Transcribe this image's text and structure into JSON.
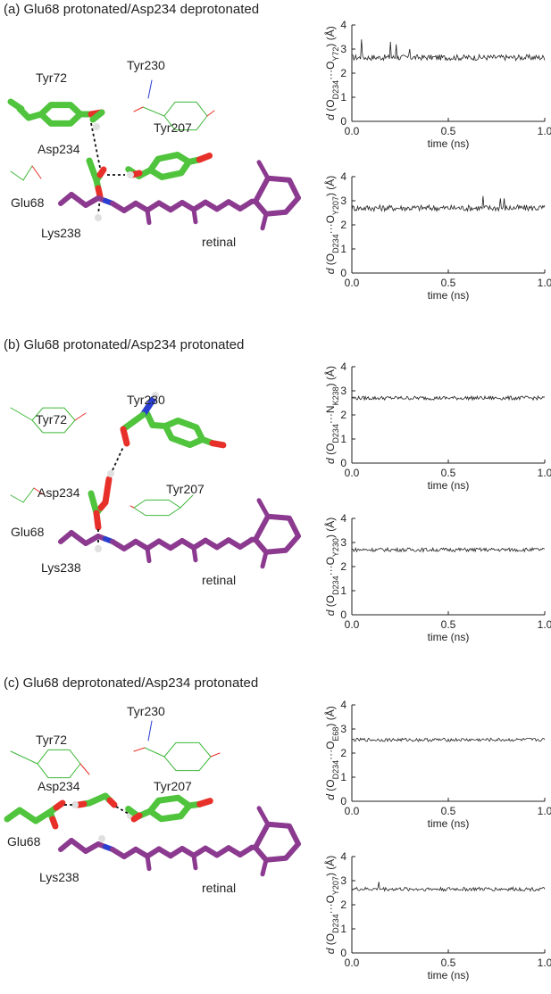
{
  "panels": [
    {
      "title": "(a) Glu68 protonated/Asp234 deprotonated",
      "labels": {
        "tyr72": "Tyr72",
        "tyr230": "Tyr230",
        "asp234": "Asp234",
        "tyr207": "Tyr207",
        "glu68": "Glu68",
        "lys238": "Lys238",
        "retinal": "retinal"
      },
      "variant": "a"
    },
    {
      "title": "(b) Glu68 protonated/Asp234 protonated",
      "labels": {
        "tyr72": "Tyr72",
        "tyr230": "Tyr230",
        "asp234": "Asp234",
        "tyr207": "Tyr207",
        "glu68": "Glu68",
        "lys238": "Lys238",
        "retinal": "retinal"
      },
      "variant": "b"
    },
    {
      "title": "(c) Glu68 deprotonated/Asp234 protonated",
      "labels": {
        "tyr72": "Tyr72",
        "tyr230": "Tyr230",
        "asp234": "Asp234",
        "tyr207": "Tyr207",
        "glu68": "Glu68",
        "lys238": "Lys238",
        "retinal": "retinal"
      },
      "variant": "c"
    }
  ],
  "colors": {
    "carbon": "#4fc43c",
    "thin": "#3fb83a",
    "oxygen": "#e8302a",
    "nitrogen": "#2a3fd0",
    "hydrogen": "#e0e0e0",
    "retinal": "#8b3a8f",
    "line": "#222222"
  },
  "chart_data": [
    {
      "type": "line",
      "ylabel": "d (OD234···OY72) (Å)",
      "ylabel_main": "d",
      "ylabel_open": "(O",
      "ylabel_sub1": "D234",
      "ylabel_dots": "···O",
      "ylabel_sub2": "Y72",
      "ylabel_close": ") (Å)",
      "xlabel": "time (ns)",
      "xlim": [
        0,
        1.0
      ],
      "ylim": [
        0,
        4
      ],
      "xticks": [
        "0.0",
        "0.5",
        "1.0"
      ],
      "yticks": [
        "0",
        "1",
        "2",
        "3",
        "4"
      ],
      "mean": 2.65,
      "noise": 0.12,
      "spikes": [
        [
          0.05,
          3.4
        ],
        [
          0.2,
          3.3
        ],
        [
          0.23,
          3.2
        ],
        [
          0.3,
          3.0
        ]
      ]
    },
    {
      "type": "line",
      "ylabel": "d (OD234···OY207) (Å)",
      "ylabel_main": "d",
      "ylabel_open": "(O",
      "ylabel_sub1": "D234",
      "ylabel_dots": "···O",
      "ylabel_sub2": "Y207",
      "ylabel_close": ") (Å)",
      "xlabel": "time (ns)",
      "xlim": [
        0,
        1.0
      ],
      "ylim": [
        0,
        4
      ],
      "xticks": [
        "0.0",
        "0.5",
        "1.0"
      ],
      "yticks": [
        "0",
        "1",
        "2",
        "3",
        "4"
      ],
      "mean": 2.7,
      "noise": 0.13,
      "spikes": [
        [
          0.68,
          3.2
        ],
        [
          0.77,
          3.1
        ],
        [
          0.79,
          3.1
        ]
      ]
    },
    {
      "type": "line",
      "ylabel": "d (OD234···NK238) (Å)",
      "ylabel_main": "d",
      "ylabel_open": "(O",
      "ylabel_sub1": "D234",
      "ylabel_dots": "···N",
      "ylabel_sub2": "K238",
      "ylabel_close": ") (Å)",
      "xlabel": "time (ns)",
      "xlim": [
        0,
        1.0
      ],
      "ylim": [
        0,
        4
      ],
      "xticks": [
        "0.0",
        "0.5",
        "1.0"
      ],
      "yticks": [
        "0",
        "1",
        "2",
        "3",
        "4"
      ],
      "mean": 2.7,
      "noise": 0.08,
      "spikes": []
    },
    {
      "type": "line",
      "ylabel": "d (OD234···OY230) (Å)",
      "ylabel_main": "d",
      "ylabel_open": "(O",
      "ylabel_sub1": "D234",
      "ylabel_dots": "···O",
      "ylabel_sub2": "Y230",
      "ylabel_close": ") (Å)",
      "xlabel": "time (ns)",
      "xlim": [
        0,
        1.0
      ],
      "ylim": [
        0,
        4
      ],
      "xticks": [
        "0.0",
        "0.5",
        "1.0"
      ],
      "yticks": [
        "0",
        "1",
        "2",
        "3",
        "4"
      ],
      "mean": 2.7,
      "noise": 0.08,
      "spikes": []
    },
    {
      "type": "line",
      "ylabel": "d (OD234···OE68) (Å)",
      "ylabel_main": "d",
      "ylabel_open": "(O",
      "ylabel_sub1": "D234",
      "ylabel_dots": "···O",
      "ylabel_sub2": "E68",
      "ylabel_close": ") (Å)",
      "xlabel": "time (ns)",
      "xlim": [
        0,
        1.0
      ],
      "ylim": [
        0,
        4
      ],
      "xticks": [
        "0.0",
        "0.5",
        "1.0"
      ],
      "yticks": [
        "0",
        "1",
        "2",
        "3",
        "4"
      ],
      "mean": 2.55,
      "noise": 0.07,
      "spikes": []
    },
    {
      "type": "line",
      "ylabel": "d (OD234···OY207) (Å)",
      "ylabel_main": "d",
      "ylabel_open": "(O",
      "ylabel_sub1": "D234",
      "ylabel_dots": "···O",
      "ylabel_sub2": "Y207",
      "ylabel_close": ") (Å)",
      "xlabel": "time (ns)",
      "xlim": [
        0,
        1.0
      ],
      "ylim": [
        0,
        4
      ],
      "xticks": [
        "0.0",
        "0.5",
        "1.0"
      ],
      "yticks": [
        "0",
        "1",
        "2",
        "3",
        "4"
      ],
      "mean": 2.65,
      "noise": 0.08,
      "spikes": [
        [
          0.14,
          2.95
        ]
      ]
    }
  ]
}
